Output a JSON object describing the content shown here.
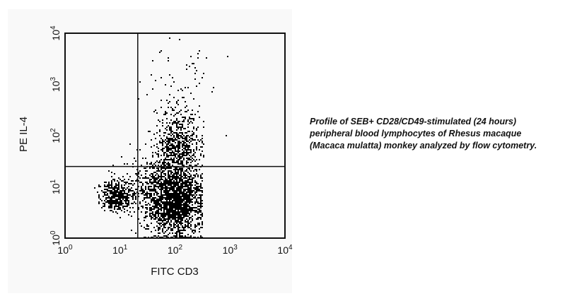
{
  "chart_data": {
    "type": "scatter",
    "subtype": "flow-cytometry-dot-plot",
    "xlabel": "FITC CD3",
    "ylabel": "PE IL-4",
    "xscale": "log",
    "yscale": "log",
    "xlim": [
      1,
      10000
    ],
    "ylim": [
      1,
      10000
    ],
    "x_ticks": [
      {
        "base": "10",
        "exp": "0"
      },
      {
        "base": "10",
        "exp": "1"
      },
      {
        "base": "10",
        "exp": "2"
      },
      {
        "base": "10",
        "exp": "3"
      },
      {
        "base": "10",
        "exp": "4"
      }
    ],
    "y_ticks": [
      {
        "base": "10",
        "exp": "0"
      },
      {
        "base": "10",
        "exp": "1"
      },
      {
        "base": "10",
        "exp": "2"
      },
      {
        "base": "10",
        "exp": "3"
      },
      {
        "base": "10",
        "exp": "4"
      }
    ],
    "grid": false,
    "quadrant_gates": {
      "x": 21,
      "y": 25
    },
    "point_color": "#000000",
    "populations": [
      {
        "x_center": 100,
        "y_center": 5,
        "x_spread_decades": 0.25,
        "y_spread_decades": 0.35,
        "events": 1800,
        "x_max": 320
      },
      {
        "x_center": 110,
        "y_center": 60,
        "x_spread_decades": 0.2,
        "y_spread_decades": 0.35,
        "events": 700,
        "x_max": 340
      },
      {
        "x_center": 9,
        "y_center": 7,
        "x_spread_decades": 0.15,
        "y_spread_decades": 0.15,
        "events": 450
      },
      {
        "x_center": 40,
        "y_center": 10,
        "x_spread_decades": 0.2,
        "y_spread_decades": 0.3,
        "events": 300
      },
      {
        "x_center": 130,
        "y_center": 800,
        "x_spread_decades": 0.3,
        "y_spread_decades": 0.5,
        "events": 80
      }
    ]
  },
  "caption": {
    "lines": [
      "Profile of SEB+ CD28/CD49-stimulated (24 hours)",
      "peripheral blood lymphocytes of Rhesus macaque",
      "(Macaca mulatta) monkey analyzed by flow cytometry."
    ]
  }
}
